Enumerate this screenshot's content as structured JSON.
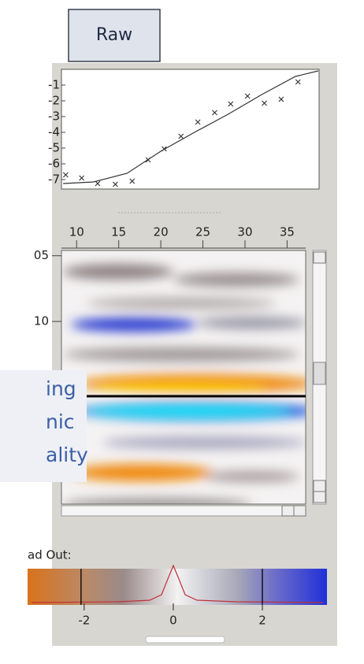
{
  "button": {
    "label": "Raw"
  },
  "crossplot": {
    "type": "scatter",
    "x": [
      8.7,
      10.6,
      12.5,
      14.6,
      16.6,
      18.5,
      20.4,
      22.4,
      24.4,
      26.4,
      28.3,
      30.3,
      32.3,
      34.3,
      36.3
    ],
    "y": [
      -6.7,
      -6.9,
      -7.25,
      -7.3,
      -7.1,
      -5.75,
      -5.05,
      -4.25,
      -3.35,
      -2.75,
      -2.2,
      -1.7,
      -2.15,
      -1.9,
      -0.8
    ],
    "fit_x": [
      8.4,
      12,
      16,
      20,
      24,
      28,
      32,
      36,
      38.7
    ],
    "fit_y": [
      -7.25,
      -7.15,
      -6.6,
      -5.2,
      -4.0,
      -2.85,
      -1.6,
      -0.45,
      -0.1
    ],
    "xlim": [
      8.2,
      38.8
    ],
    "ylim": [
      -7.6,
      0
    ],
    "xticks": [
      10,
      15,
      20,
      25,
      30,
      35
    ],
    "yticks": [
      -1,
      -2,
      -3,
      -4,
      -5,
      -6,
      -7
    ]
  },
  "section": {
    "ylim": [
      4.6,
      24.8
    ],
    "yticks": [
      {
        "value": 5,
        "label": "05"
      },
      10
    ]
  },
  "overlay": {
    "lines": [
      "ing",
      "nic",
      "ality"
    ]
  },
  "colorbar": {
    "label": "ad Out:",
    "xlim": [
      -3.27,
      3.45
    ],
    "xticks": [
      -2,
      0,
      2
    ],
    "clip_lines": [
      -2.07,
      2
    ]
  }
}
